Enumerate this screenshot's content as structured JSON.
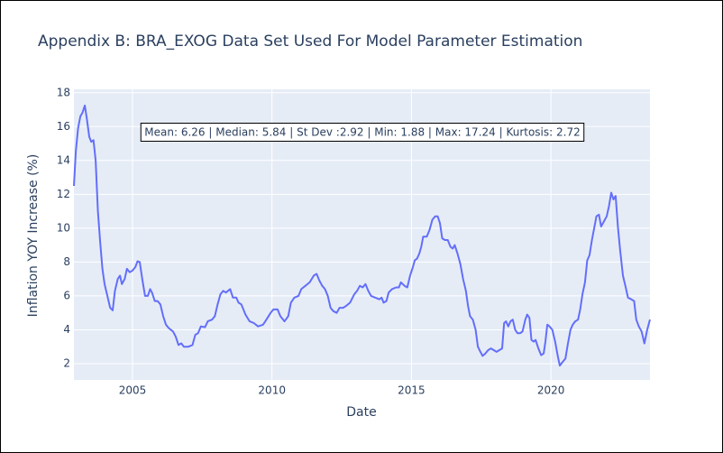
{
  "chart_data": {
    "type": "line",
    "title": "Appendix B: BRA_EXOG Data Set Used For Model Parameter Estimation",
    "x_label": "Date",
    "y_label": "Inflation YOY Increase (%)",
    "annotation": "Mean: 6.26 | Median: 5.84 | St Dev :2.92 | Min: 1.88 | Max: 17.24 | Kurtosis: 2.72",
    "color": "#636efa",
    "grid": true,
    "xlim": [
      2002.9,
      2023.55
    ],
    "ylim": [
      1.04,
      18.2
    ],
    "xticks": [
      2005,
      2010,
      2015,
      2020
    ],
    "yticks": [
      2,
      4,
      6,
      8,
      10,
      12,
      14,
      16,
      18
    ],
    "x": [
      2002.9,
      2002.97,
      2003.05,
      2003.13,
      2003.2,
      2003.29,
      2003.37,
      2003.45,
      2003.52,
      2003.6,
      2003.68,
      2003.76,
      2003.84,
      2003.92,
      2004.0,
      2004.1,
      2004.2,
      2004.29,
      2004.37,
      2004.47,
      2004.55,
      2004.62,
      2004.72,
      2004.8,
      2004.9,
      2005.0,
      2005.1,
      2005.18,
      2005.26,
      2005.35,
      2005.45,
      2005.55,
      2005.63,
      2005.7,
      2005.8,
      2005.9,
      2006.0,
      2006.1,
      2006.2,
      2006.3,
      2006.45,
      2006.55,
      2006.65,
      2006.75,
      2006.84,
      2007.0,
      2007.15,
      2007.25,
      2007.35,
      2007.45,
      2007.6,
      2007.7,
      2007.85,
      2007.95,
      2008.05,
      2008.15,
      2008.25,
      2008.35,
      2008.5,
      2008.6,
      2008.72,
      2008.8,
      2008.9,
      2009.05,
      2009.2,
      2009.35,
      2009.5,
      2009.68,
      2009.8,
      2009.95,
      2010.05,
      2010.2,
      2010.3,
      2010.45,
      2010.58,
      2010.68,
      2010.8,
      2010.95,
      2011.05,
      2011.2,
      2011.35,
      2011.5,
      2011.6,
      2011.7,
      2011.8,
      2011.9,
      2012.0,
      2012.1,
      2012.2,
      2012.32,
      2012.42,
      2012.55,
      2012.65,
      2012.8,
      2012.95,
      2013.05,
      2013.15,
      2013.25,
      2013.35,
      2013.45,
      2013.55,
      2013.7,
      2013.85,
      2013.93,
      2014.0,
      2014.1,
      2014.18,
      2014.3,
      2014.45,
      2014.55,
      2014.62,
      2014.75,
      2014.85,
      2014.95,
      2015.05,
      2015.12,
      2015.2,
      2015.28,
      2015.35,
      2015.42,
      2015.55,
      2015.65,
      2015.75,
      2015.85,
      2015.94,
      2016.02,
      2016.1,
      2016.2,
      2016.3,
      2016.4,
      2016.48,
      2016.55,
      2016.65,
      2016.75,
      2016.85,
      2016.95,
      2017.03,
      2017.1,
      2017.2,
      2017.3,
      2017.38,
      2017.47,
      2017.55,
      2017.65,
      2017.75,
      2017.85,
      2017.95,
      2018.05,
      2018.15,
      2018.25,
      2018.32,
      2018.39,
      2018.47,
      2018.55,
      2018.63,
      2018.72,
      2018.8,
      2018.9,
      2018.98,
      2019.08,
      2019.15,
      2019.23,
      2019.3,
      2019.38,
      2019.45,
      2019.55,
      2019.65,
      2019.74,
      2019.8,
      2019.87,
      2019.95,
      2020.05,
      2020.15,
      2020.25,
      2020.32,
      2020.42,
      2020.52,
      2020.6,
      2020.7,
      2020.78,
      2020.87,
      2020.97,
      2021.05,
      2021.13,
      2021.22,
      2021.3,
      2021.38,
      2021.47,
      2021.55,
      2021.63,
      2021.72,
      2021.8,
      2021.9,
      2022.0,
      2022.08,
      2022.16,
      2022.24,
      2022.32,
      2022.4,
      2022.48,
      2022.58,
      2022.68,
      2022.76,
      2022.88,
      2022.98,
      2023.06,
      2023.15,
      2023.25,
      2023.35,
      2023.45,
      2023.55
    ],
    "values": [
      12.5,
      14.6,
      15.9,
      16.6,
      16.8,
      17.24,
      16.4,
      15.4,
      15.1,
      15.2,
      14.0,
      11.0,
      9.2,
      7.6,
      6.7,
      6.0,
      5.3,
      5.15,
      6.3,
      7.0,
      7.2,
      6.7,
      7.0,
      7.6,
      7.4,
      7.5,
      7.7,
      8.05,
      8.0,
      7.0,
      6.0,
      6.0,
      6.4,
      6.2,
      5.7,
      5.7,
      5.5,
      4.8,
      4.3,
      4.1,
      3.9,
      3.6,
      3.1,
      3.2,
      3.0,
      3.0,
      3.1,
      3.7,
      3.8,
      4.2,
      4.15,
      4.5,
      4.6,
      4.8,
      5.5,
      6.1,
      6.3,
      6.2,
      6.4,
      5.9,
      5.9,
      5.6,
      5.5,
      4.9,
      4.5,
      4.4,
      4.2,
      4.3,
      4.6,
      5.0,
      5.2,
      5.2,
      4.8,
      4.5,
      4.8,
      5.6,
      5.9,
      6.0,
      6.4,
      6.6,
      6.8,
      7.2,
      7.3,
      6.9,
      6.6,
      6.4,
      6.0,
      5.3,
      5.1,
      5.0,
      5.3,
      5.3,
      5.4,
      5.6,
      6.1,
      6.3,
      6.6,
      6.5,
      6.7,
      6.3,
      6.0,
      5.9,
      5.8,
      5.9,
      5.6,
      5.7,
      6.2,
      6.4,
      6.5,
      6.5,
      6.8,
      6.6,
      6.5,
      7.2,
      7.7,
      8.1,
      8.2,
      8.5,
      8.9,
      9.5,
      9.5,
      9.9,
      10.5,
      10.7,
      10.7,
      10.3,
      9.4,
      9.3,
      9.3,
      8.9,
      8.8,
      9.0,
      8.5,
      7.9,
      7.0,
      6.3,
      5.4,
      4.8,
      4.6,
      4.0,
      3.0,
      2.7,
      2.46,
      2.6,
      2.8,
      2.9,
      2.8,
      2.7,
      2.8,
      2.9,
      4.4,
      4.5,
      4.2,
      4.5,
      4.6,
      4.0,
      3.8,
      3.8,
      3.9,
      4.6,
      4.9,
      4.7,
      3.4,
      3.3,
      3.4,
      2.9,
      2.5,
      2.6,
      3.3,
      4.3,
      4.2,
      4.0,
      3.3,
      2.4,
      1.88,
      2.1,
      2.3,
      3.1,
      4.0,
      4.3,
      4.5,
      4.6,
      5.2,
      6.1,
      6.8,
      8.1,
      8.4,
      9.3,
      10.0,
      10.7,
      10.8,
      10.1,
      10.4,
      10.7,
      11.3,
      12.1,
      11.7,
      11.9,
      10.1,
      8.7,
      7.2,
      6.5,
      5.9,
      5.8,
      5.7,
      4.6,
      4.2,
      3.9,
      3.2,
      4.0,
      4.6
    ]
  }
}
